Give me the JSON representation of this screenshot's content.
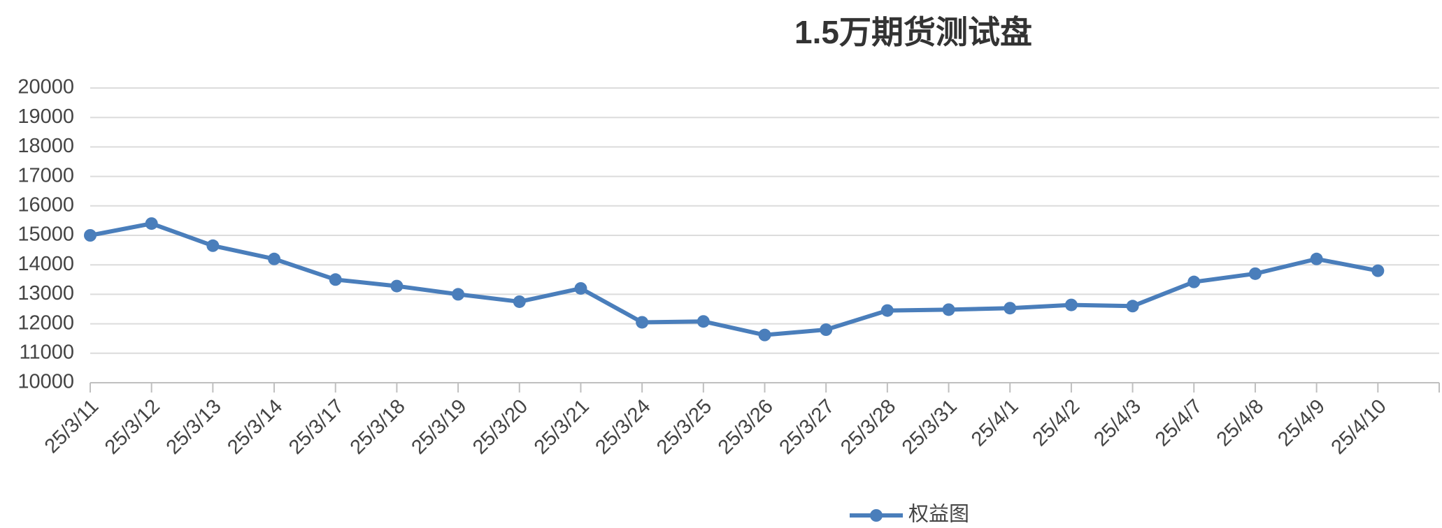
{
  "chart_data": {
    "type": "line",
    "title": "1.5万期货测试盘",
    "categories": [
      "25/3/11",
      "25/3/12",
      "25/3/13",
      "25/3/14",
      "25/3/17",
      "25/3/18",
      "25/3/19",
      "25/3/20",
      "25/3/21",
      "25/3/24",
      "25/3/25",
      "25/3/26",
      "25/3/27",
      "25/3/28",
      "25/3/31",
      "25/4/1",
      "25/4/2",
      "25/4/3",
      "25/4/7",
      "25/4/8",
      "25/4/9",
      "25/4/10"
    ],
    "series": [
      {
        "name": "权益图",
        "color": "#4a7ebb",
        "values": [
          15000,
          15400,
          14650,
          14200,
          13500,
          13280,
          13000,
          12750,
          13200,
          12050,
          12080,
          11620,
          11800,
          12450,
          12480,
          12530,
          12640,
          12600,
          13420,
          13700,
          14200,
          13800
        ]
      }
    ],
    "ylim": [
      10000,
      20000
    ],
    "yticks": [
      10000,
      11000,
      12000,
      13000,
      14000,
      15000,
      16000,
      17000,
      18000,
      19000,
      20000
    ],
    "grid": true,
    "legend": "bottom"
  }
}
